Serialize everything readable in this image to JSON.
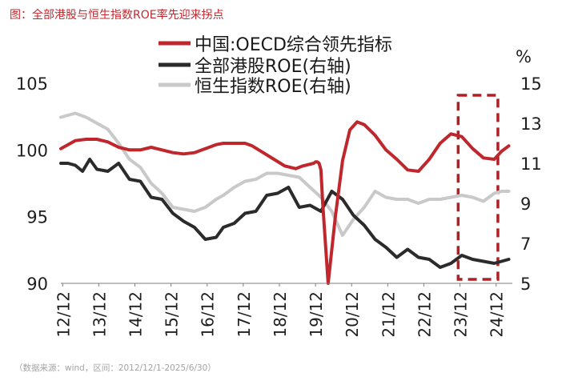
{
  "figure": {
    "title": "图：全部港股与恒生指数ROE率先迎来拐点",
    "source": "（数据来源：wind，区间：2012/12/1-2025/6/30）"
  },
  "chart_data": {
    "type": "line",
    "title": "",
    "xlabel": "",
    "ylabel": "",
    "y2label": "%",
    "x_tick_labels": [
      "12/12",
      "13/12",
      "14/12",
      "15/12",
      "16/12",
      "17/12",
      "18/12",
      "19/12",
      "20/12",
      "21/12",
      "22/12",
      "23/12",
      "24/12"
    ],
    "ylim": [
      90,
      105
    ],
    "yticks": [
      90,
      95,
      100,
      105
    ],
    "y2lim": [
      5,
      15
    ],
    "y2ticks": [
      5,
      7,
      9,
      11,
      13,
      15
    ],
    "legend_position": "top",
    "highlight_box": {
      "x_range": [
        2023.9,
        2025.0
      ],
      "y2_range": [
        5.2,
        14.4
      ],
      "color": "#b11f24",
      "style": "dashed"
    },
    "series": [
      {
        "name": "中国:OECD综合领先指标",
        "axis": "left",
        "color": "#c0272d",
        "x": [
          2012.9,
          2013.1,
          2013.3,
          2013.6,
          2013.9,
          2014.2,
          2014.5,
          2014.8,
          2015.1,
          2015.4,
          2015.7,
          2016.0,
          2016.3,
          2016.6,
          2016.9,
          2017.2,
          2017.4,
          2017.7,
          2018.0,
          2018.2,
          2018.5,
          2018.8,
          2019.1,
          2019.4,
          2019.6,
          2019.9,
          2019.95,
          2020.0,
          2020.05,
          2020.1,
          2020.15,
          2020.3,
          2020.5,
          2020.7,
          2020.9,
          2021.1,
          2021.3,
          2021.6,
          2021.9,
          2022.2,
          2022.5,
          2022.8,
          2023.1,
          2023.4,
          2023.7,
          2024.0,
          2024.3,
          2024.6,
          2024.9,
          2025.1,
          2025.3
        ],
        "values": [
          100.1,
          100.4,
          100.7,
          100.8,
          100.8,
          100.6,
          100.2,
          100.0,
          100.0,
          100.2,
          100.0,
          99.8,
          99.7,
          99.8,
          100.1,
          100.4,
          100.5,
          100.5,
          100.5,
          100.3,
          99.8,
          99.3,
          98.8,
          98.6,
          98.8,
          99.0,
          99.1,
          99.1,
          99.0,
          98.5,
          96.0,
          90.0,
          95.0,
          99.2,
          101.5,
          102.1,
          101.9,
          101.1,
          100.0,
          99.3,
          98.5,
          98.4,
          99.3,
          100.5,
          101.2,
          101.0,
          100.1,
          99.4,
          99.3,
          99.9,
          100.3
        ]
      },
      {
        "name": "全部港股ROE(右轴)",
        "axis": "right",
        "color": "#2b2b2b",
        "x": [
          2012.9,
          2013.1,
          2013.3,
          2013.5,
          2013.7,
          2013.9,
          2014.2,
          2014.5,
          2014.8,
          2015.1,
          2015.4,
          2015.7,
          2016.0,
          2016.3,
          2016.6,
          2016.9,
          2017.2,
          2017.4,
          2017.7,
          2018.0,
          2018.3,
          2018.6,
          2018.9,
          2019.2,
          2019.5,
          2019.8,
          2020.1,
          2020.4,
          2020.7,
          2021.0,
          2021.3,
          2021.6,
          2021.9,
          2022.2,
          2022.5,
          2022.8,
          2023.1,
          2023.4,
          2023.7,
          2024.0,
          2024.3,
          2024.6,
          2024.9,
          2025.1,
          2025.3
        ],
        "values": [
          11.0,
          11.0,
          10.9,
          10.6,
          11.2,
          10.7,
          10.6,
          11.0,
          10.2,
          10.1,
          9.3,
          9.2,
          8.5,
          8.1,
          7.8,
          7.2,
          7.3,
          7.8,
          8.0,
          8.5,
          8.6,
          9.4,
          9.5,
          9.8,
          8.8,
          8.9,
          8.6,
          9.6,
          9.2,
          8.4,
          7.9,
          7.2,
          6.8,
          6.3,
          6.7,
          6.3,
          6.2,
          5.8,
          6.0,
          6.4,
          6.2,
          6.1,
          6.0,
          6.1,
          6.2
        ]
      },
      {
        "name": "恒生指数ROE(右轴)",
        "axis": "right",
        "color": "#c9c9c9",
        "x": [
          2012.9,
          2013.1,
          2013.3,
          2013.6,
          2013.9,
          2014.2,
          2014.5,
          2014.8,
          2015.1,
          2015.4,
          2015.7,
          2016.0,
          2016.3,
          2016.6,
          2016.9,
          2017.2,
          2017.4,
          2017.7,
          2018.0,
          2018.3,
          2018.6,
          2018.9,
          2019.2,
          2019.5,
          2019.8,
          2020.1,
          2020.4,
          2020.7,
          2021.0,
          2021.3,
          2021.6,
          2021.9,
          2022.2,
          2022.5,
          2022.8,
          2023.1,
          2023.4,
          2023.7,
          2024.0,
          2024.3,
          2024.6,
          2024.9,
          2025.1,
          2025.3
        ],
        "values": [
          13.3,
          13.4,
          13.5,
          13.3,
          13.0,
          12.7,
          12.0,
          11.2,
          10.8,
          10.0,
          9.5,
          8.8,
          8.7,
          8.6,
          8.8,
          9.2,
          9.4,
          9.8,
          10.1,
          10.2,
          10.5,
          10.5,
          10.4,
          10.3,
          9.8,
          9.3,
          8.6,
          7.4,
          8.2,
          8.8,
          9.6,
          9.3,
          9.2,
          9.2,
          9.0,
          9.2,
          9.2,
          9.3,
          9.4,
          9.3,
          9.1,
          9.5,
          9.6,
          9.6
        ]
      }
    ]
  }
}
